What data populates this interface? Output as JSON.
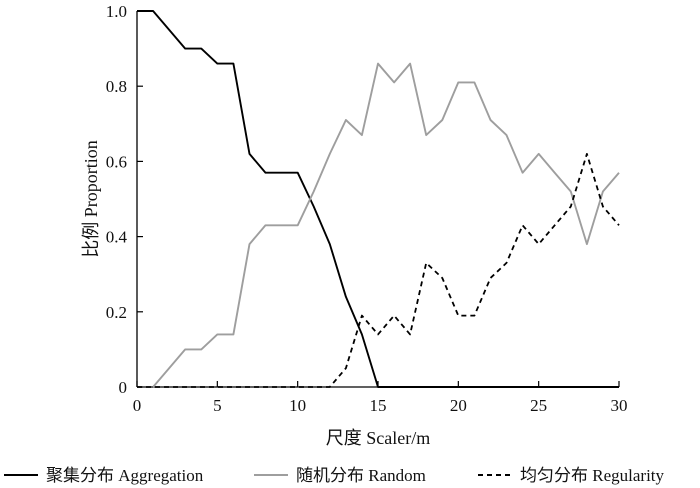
{
  "chart_data": {
    "type": "line",
    "xlabel": "尺度 Scaler/m",
    "ylabel": "比例 Proportion",
    "xlim": [
      0,
      30
    ],
    "ylim": [
      0,
      1.0
    ],
    "x_ticks": [
      "0",
      "5",
      "10",
      "15",
      "20",
      "25",
      "30"
    ],
    "y_ticks": [
      "0",
      "0.2",
      "0.4",
      "0.6",
      "0.8",
      "1.0"
    ],
    "grid": false,
    "legend_position": "bottom",
    "series": [
      {
        "name": "聚集分布 Aggregation",
        "color": "#000000",
        "dash": "solid",
        "x": [
          0,
          1,
          2,
          3,
          4,
          5,
          6,
          7,
          8,
          9,
          10,
          11,
          12,
          13,
          14,
          15,
          16,
          17,
          18,
          19,
          20,
          21,
          22,
          23,
          24,
          25,
          26,
          27,
          28,
          29,
          30
        ],
        "values": [
          1.0,
          1.0,
          0.95,
          0.9,
          0.9,
          0.86,
          0.86,
          0.62,
          0.57,
          0.57,
          0.57,
          0.48,
          0.38,
          0.24,
          0.14,
          0,
          0,
          0,
          0,
          0,
          0,
          0,
          0,
          0,
          0,
          0,
          0,
          0,
          0,
          0,
          0
        ]
      },
      {
        "name": "随机分布 Random",
        "color": "#9e9e9e",
        "dash": "solid",
        "x": [
          1,
          2,
          3,
          4,
          5,
          6,
          7,
          8,
          9,
          10,
          11,
          12,
          13,
          14,
          15,
          16,
          17,
          18,
          19,
          20,
          21,
          22,
          23,
          24,
          25,
          26,
          27,
          28,
          29,
          30
        ],
        "values": [
          0,
          0.05,
          0.1,
          0.1,
          0.14,
          0.14,
          0.38,
          0.43,
          0.43,
          0.43,
          0.52,
          0.62,
          0.71,
          0.67,
          0.86,
          0.81,
          0.86,
          0.67,
          0.71,
          0.81,
          0.81,
          0.71,
          0.67,
          0.57,
          0.62,
          0.57,
          0.52,
          0.38,
          0.52,
          0.57
        ]
      },
      {
        "name": "均匀分布 Regularity",
        "color": "#000000",
        "dash": "dashed",
        "x": [
          0,
          1,
          2,
          3,
          4,
          5,
          6,
          7,
          8,
          9,
          10,
          11,
          12,
          13,
          14,
          15,
          16,
          17,
          18,
          19,
          20,
          21,
          22,
          23,
          24,
          25,
          26,
          27,
          28,
          29,
          30
        ],
        "values": [
          0,
          0,
          0,
          0,
          0,
          0,
          0,
          0,
          0,
          0,
          0,
          0,
          0,
          0.05,
          0.19,
          0.14,
          0.19,
          0.14,
          0.33,
          0.29,
          0.19,
          0.19,
          0.29,
          0.33,
          0.43,
          0.38,
          0.43,
          0.48,
          0.62,
          0.48,
          0.43
        ]
      }
    ]
  }
}
